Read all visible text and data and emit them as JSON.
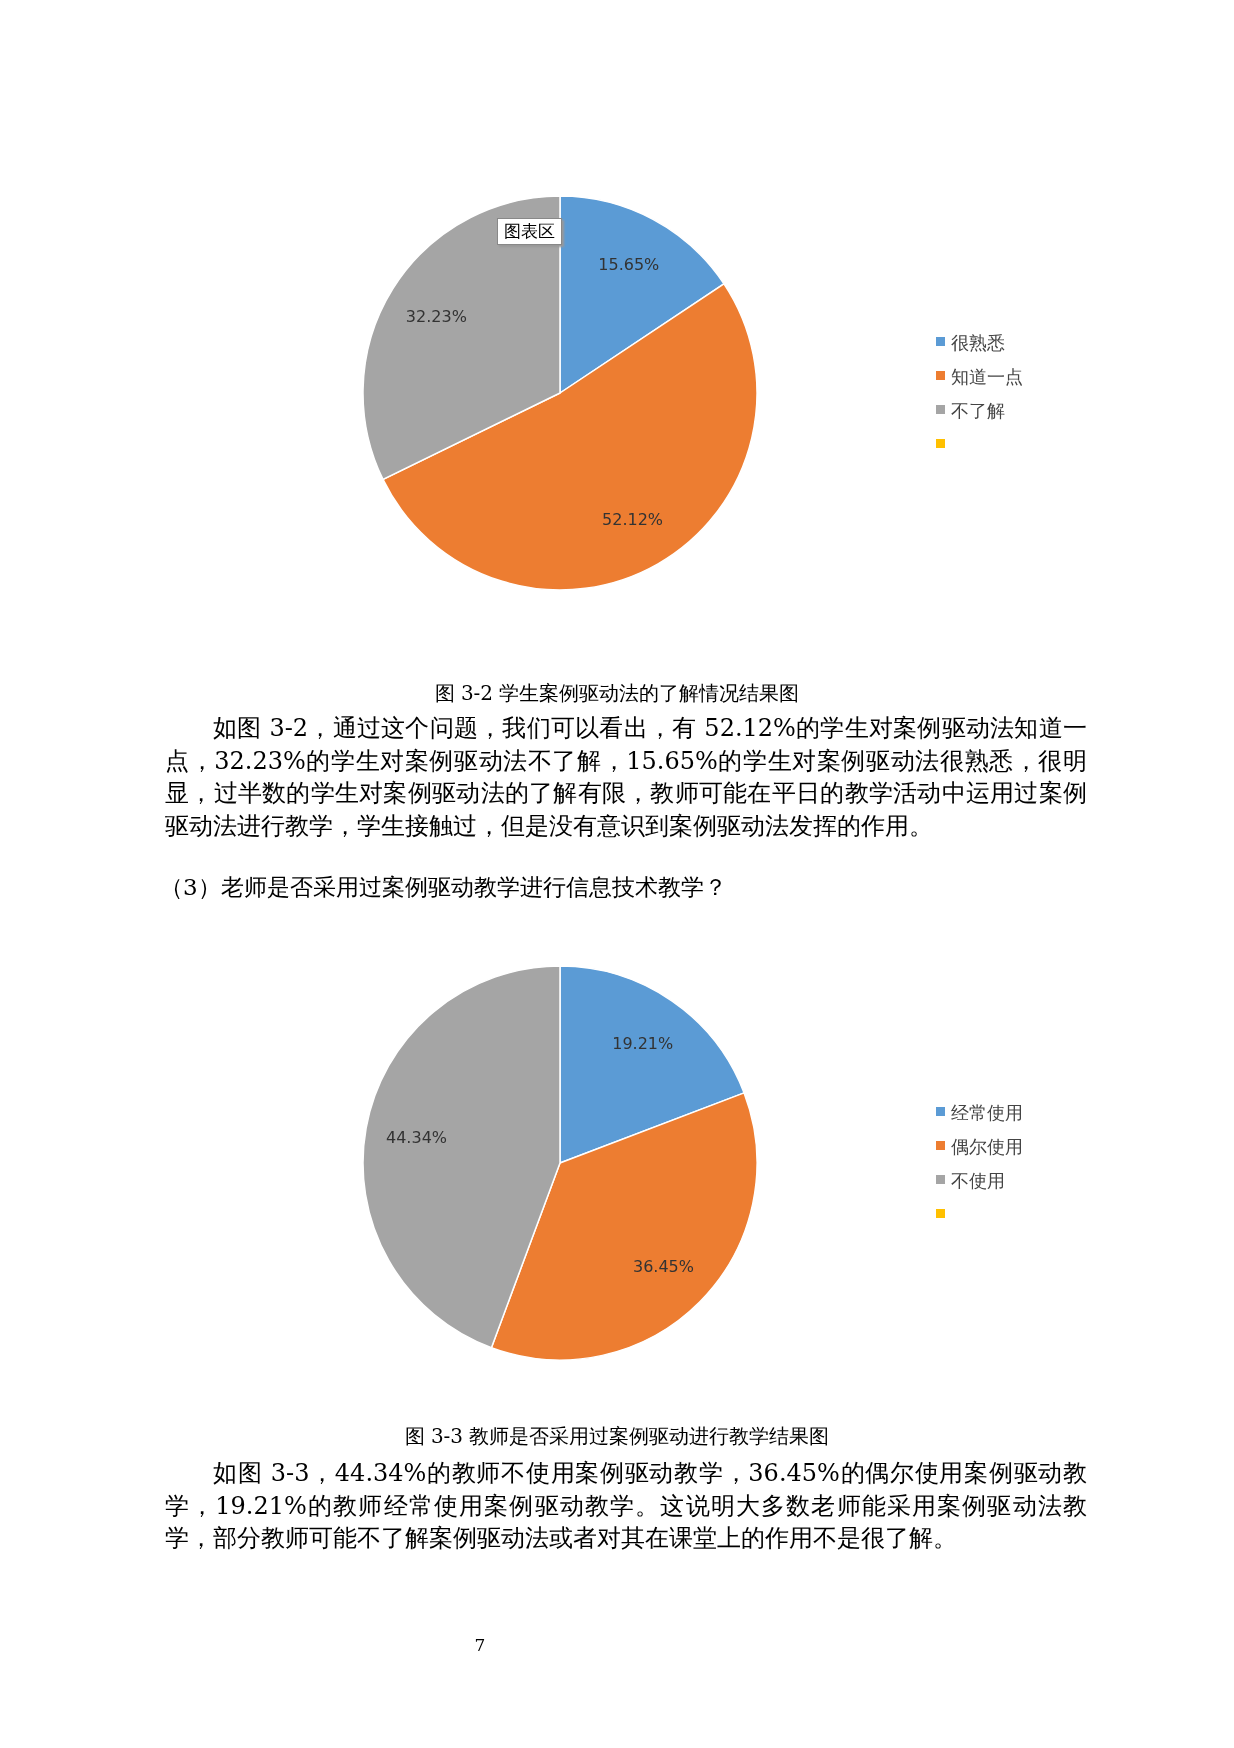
{
  "chart_data": [
    {
      "type": "pie",
      "title": "图 3-2  学生案例驱动法的了解情况结果图",
      "categories": [
        "很熟悉",
        "知道一点",
        "不了解",
        null
      ],
      "values": [
        15.65,
        52.12,
        32.23,
        0
      ],
      "colors": [
        "#5b9bd5",
        "#ed7d31",
        "#a5a5a5",
        "#ffc000"
      ],
      "value_labels": [
        "15.65%",
        "52.12%",
        "32.23%",
        null
      ],
      "legend": "right",
      "annotations": [
        "图表区",
        "如图 3-2，通过这个问题，我们可以看出，有 52.12%的学生对案例驱动法知道一点，32.23%的学生对案例驱动法不了解，15.65%的学生对案例驱动法很熟悉，很明显，过半数的学生对案例驱动法的了解有限，教师可能在平日的教学活动中运用过案例驱动法进行教学，学生接触过，但是没有意识到案例驱动法发挥的作用。"
      ]
    },
    {
      "type": "pie",
      "title": "图 3-3    教师是否采用过案例驱动进行教学结果图",
      "subtitle": "（3）老师是否采用过案例驱动教学进行信息技术教学？",
      "categories": [
        "经常使用",
        "偶尔使用",
        "不使用",
        null
      ],
      "values": [
        19.21,
        36.45,
        44.34,
        0
      ],
      "colors": [
        "#5b9bd5",
        "#ed7d31",
        "#a5a5a5",
        "#ffc000"
      ],
      "value_labels": [
        "19.21%",
        "36.45%",
        "44.34%",
        null
      ],
      "legend": "right",
      "annotations": [
        "如图 3-3，44.34%的教师不使用案例驱动教学，36.45%的偶尔使用案例驱动教学，19.21%的教师经常使用案例驱动教学。这说明大多数老师能采用案例驱动法教学，部分教师可能不了解案例驱动法或者对其在课堂上的作用不是很了解。",
        "7"
      ]
    }
  ]
}
